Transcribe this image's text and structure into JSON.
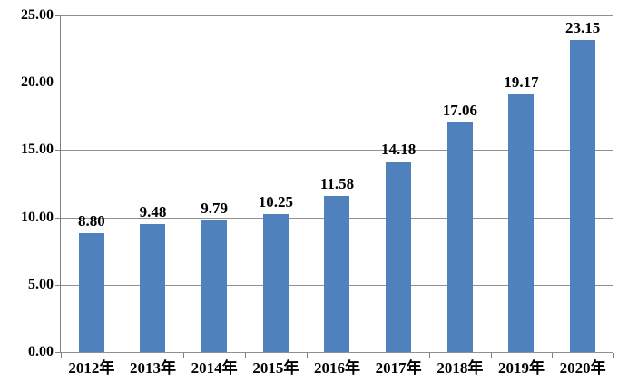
{
  "chart_data": {
    "type": "bar",
    "title": "",
    "xlabel": "",
    "ylabel": "",
    "categories": [
      "2012年",
      "2013年",
      "2014年",
      "2015年",
      "2016年",
      "2017年",
      "2018年",
      "2019年",
      "2020年"
    ],
    "values": [
      8.8,
      9.48,
      9.79,
      10.25,
      11.58,
      14.18,
      17.06,
      19.17,
      23.15
    ],
    "data_labels": [
      "8.80",
      "9.48",
      "9.79",
      "10.25",
      "11.58",
      "14.18",
      "17.06",
      "19.17",
      "23.15"
    ],
    "ylim": [
      0,
      25
    ],
    "y_tick_step": 5,
    "y_tick_labels": [
      "0.00",
      "5.00",
      "10.00",
      "15.00",
      "20.00",
      "25.00"
    ],
    "grid": true,
    "legend_position": "none",
    "colors": {
      "bar_fill": "#4F81BD",
      "gridline": "#909090",
      "axis": "#808080",
      "text": "#000000",
      "background": "#FFFFFF"
    }
  }
}
